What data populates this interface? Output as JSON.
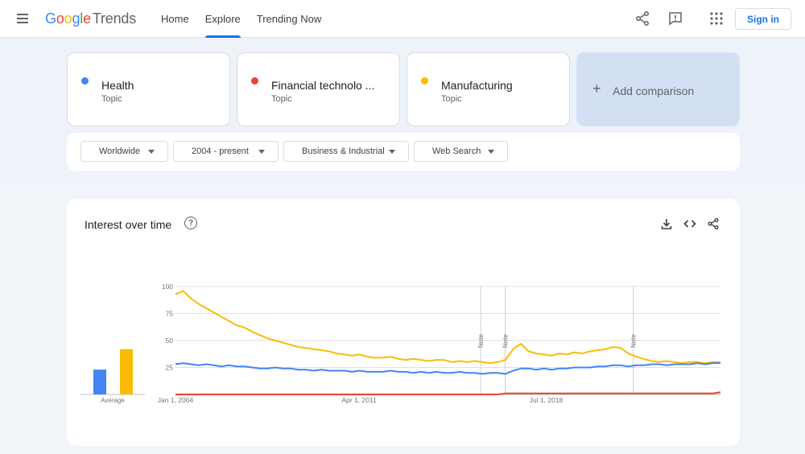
{
  "header": {
    "logo": {
      "g1": "G",
      "g2": "o",
      "g3": "o",
      "g4": "g",
      "g5": "l",
      "g6": "e",
      "trends": "Trends"
    },
    "nav": [
      {
        "label": "Home",
        "active": false
      },
      {
        "label": "Explore",
        "active": true
      },
      {
        "label": "Trending Now",
        "active": false
      }
    ],
    "icons": [
      "menu-icon",
      "share-icon",
      "feedback-icon",
      "apps-icon"
    ],
    "signin_label": "Sign in"
  },
  "comparisons": [
    {
      "term": "Health",
      "type": "Topic",
      "color": "#4285f4"
    },
    {
      "term": "Financial technolo ...",
      "type": "Topic",
      "color": "#ea4335"
    },
    {
      "term": "Manufacturing",
      "type": "Topic",
      "color": "#fbbc05"
    }
  ],
  "add_comparison": {
    "plus": "+",
    "label": "Add comparison"
  },
  "filters": [
    {
      "label": "Worldwide"
    },
    {
      "label": "2004 - present"
    },
    {
      "label": "Business & Industrial"
    },
    {
      "label": "Web Search"
    }
  ],
  "panel": {
    "title": "Interest over time",
    "help": "?",
    "icons": [
      "download-icon",
      "embed-icon",
      "share-icon"
    ]
  },
  "chart_data": {
    "type": "line",
    "title": "Interest over time",
    "ylim": [
      0,
      100
    ],
    "y_ticks": [
      "100",
      "75",
      "50",
      "25"
    ],
    "x_ticks": [
      "Jan 1, 2004",
      "Apr 1, 2011",
      "Jul 1, 2018"
    ],
    "notes": [
      "Note",
      "Note",
      "Note"
    ],
    "note_positions": [
      0.56,
      0.605,
      0.84
    ],
    "average_label": "Average",
    "averages": [
      {
        "name": "Health",
        "value": 23,
        "color": "#4285f4"
      },
      {
        "name": "Manufacturing",
        "value": 42,
        "color": "#fbbc05"
      }
    ],
    "series": [
      {
        "name": "Manufacturing",
        "color": "#fbbc05",
        "values": [
          93,
          96,
          89,
          84,
          80,
          76,
          72,
          68,
          64,
          62,
          58,
          55,
          52,
          50,
          48,
          46,
          44,
          43,
          42,
          41,
          40,
          38,
          37,
          36,
          37,
          35,
          34,
          34,
          35,
          33,
          32,
          33,
          32,
          31,
          32,
          32,
          30,
          31,
          30,
          31,
          30,
          29,
          30,
          32,
          42,
          47,
          40,
          38,
          37,
          36,
          38,
          37,
          39,
          38,
          40,
          41,
          42,
          44,
          43,
          38,
          35,
          33,
          31,
          30,
          31,
          30,
          29,
          30,
          30,
          29,
          30,
          30
        ]
      },
      {
        "name": "Health",
        "color": "#4285f4",
        "values": [
          28,
          29,
          28,
          27,
          28,
          27,
          26,
          27,
          26,
          26,
          25,
          24,
          24,
          25,
          24,
          24,
          23,
          23,
          22,
          23,
          22,
          22,
          22,
          21,
          22,
          21,
          21,
          21,
          22,
          21,
          21,
          20,
          21,
          20,
          21,
          20,
          20,
          21,
          20,
          20,
          19,
          20,
          20,
          19,
          22,
          24,
          24,
          23,
          24,
          23,
          24,
          24,
          25,
          25,
          25,
          26,
          26,
          27,
          27,
          26,
          27,
          27,
          28,
          28,
          27,
          28,
          28,
          28,
          29,
          28,
          29,
          29
        ]
      },
      {
        "name": "Financial technology",
        "color": "#ea4335",
        "values": [
          0,
          0,
          0,
          0,
          0,
          0,
          0,
          0,
          0,
          0,
          0,
          0,
          0,
          0,
          0,
          0,
          0,
          0,
          0,
          0,
          0,
          0,
          0,
          0,
          0,
          0,
          0,
          0,
          0,
          0,
          0,
          0,
          0,
          0,
          0,
          0,
          0,
          0,
          0,
          0,
          0,
          0,
          0,
          1,
          1,
          1,
          1,
          1,
          1,
          1,
          1,
          1,
          1,
          1,
          1,
          1,
          1,
          1,
          1,
          1,
          1,
          1,
          1,
          1,
          1,
          1,
          1,
          1,
          1,
          1,
          1,
          2
        ]
      }
    ]
  }
}
